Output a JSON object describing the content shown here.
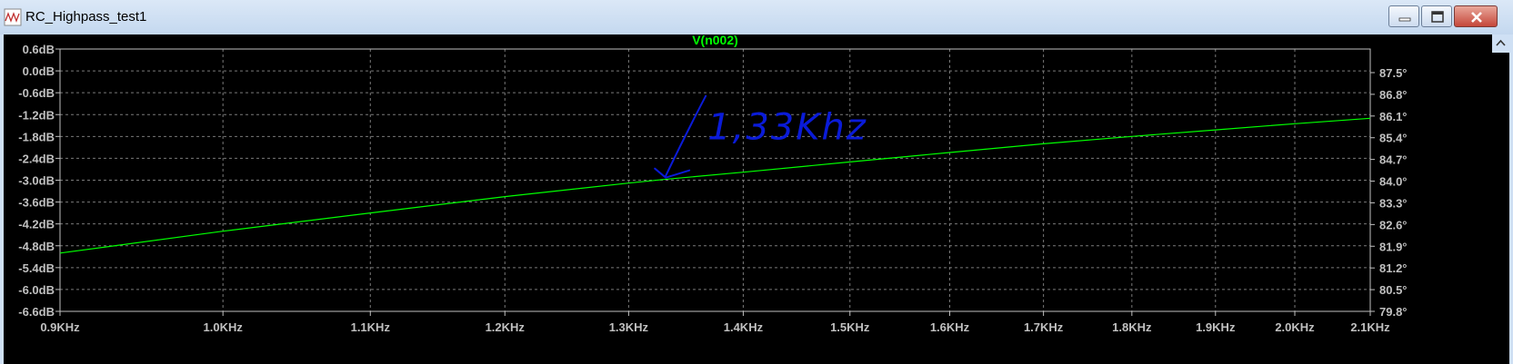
{
  "window": {
    "title": "RC_Highpass_test1"
  },
  "chart_data": {
    "type": "line",
    "title": "V(n002)",
    "x_ticks": [
      "0.9KHz",
      "1.0KHz",
      "1.1KHz",
      "1.2KHz",
      "1.3KHz",
      "1.4KHz",
      "1.5KHz",
      "1.6KHz",
      "1.7KHz",
      "1.8KHz",
      "1.9KHz",
      "2.0KHz",
      "2.1KHz"
    ],
    "x_tick_values": [
      0.9,
      1.0,
      1.1,
      1.2,
      1.3,
      1.4,
      1.5,
      1.6,
      1.7,
      1.8,
      1.9,
      2.0,
      2.1
    ],
    "xlim": [
      0.9,
      2.1
    ],
    "x_scale": "log",
    "x_unit": "KHz",
    "y_left_ticks": [
      "0.6dB",
      "0.0dB",
      "-0.6dB",
      "-1.2dB",
      "-1.8dB",
      "-2.4dB",
      "-3.0dB",
      "-3.6dB",
      "-4.2dB",
      "-4.8dB",
      "-5.4dB",
      "-6.0dB",
      "-6.6dB"
    ],
    "y_left_tick_values": [
      0.6,
      0.0,
      -0.6,
      -1.2,
      -1.8,
      -2.4,
      -3.0,
      -3.6,
      -4.2,
      -4.8,
      -5.4,
      -6.0,
      -6.6
    ],
    "ylim_left": [
      -6.6,
      0.6
    ],
    "y_right_ticks": [
      "87.5°",
      "86.8°",
      "86.1°",
      "85.4°",
      "84.7°",
      "84.0°",
      "83.3°",
      "82.6°",
      "81.9°",
      "81.2°",
      "80.5°",
      "79.8°"
    ],
    "series": [
      {
        "color": "#00ff00",
        "x": [
          0.9,
          1.0,
          1.1,
          1.2,
          1.3,
          1.33,
          1.4,
          1.5,
          1.6,
          1.7,
          1.8,
          1.9,
          2.0,
          2.1
        ],
        "y": [
          -5.0,
          -4.4,
          -3.9,
          -3.45,
          -3.08,
          -2.98,
          -2.78,
          -2.5,
          -2.24,
          -2.0,
          -1.8,
          -1.62,
          -1.45,
          -1.3
        ]
      }
    ],
    "grid": true,
    "annotation": {
      "text": "1,33Khz",
      "x": 1.33,
      "y": -2.98,
      "color": "#0a1bd8"
    }
  },
  "colors": {
    "background": "#000000",
    "axis": "#c0c0c0",
    "grid": "#7a7a7a",
    "trace": "#00ff00"
  }
}
